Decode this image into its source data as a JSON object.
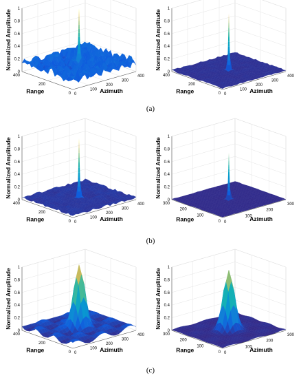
{
  "figure": {
    "captions": [
      "(a)",
      "(b)",
      "(c)"
    ]
  },
  "chart_data": [
    {
      "id": "a-left",
      "type": "surface",
      "zlabel": "Normalized Amplitude",
      "range_label": "Range",
      "azimuth_label": "Azimuth",
      "zticks": [
        "0",
        "0.2",
        "0.4",
        "0.6",
        "0.8",
        "1"
      ],
      "range_ticks": [
        "400",
        "200",
        "0"
      ],
      "azimuth_ticks": [
        "0",
        "100",
        "200",
        "300",
        "400"
      ],
      "zlim": [
        0,
        1
      ],
      "range_lim": [
        0,
        400
      ],
      "azimuth_lim": [
        0,
        400
      ],
      "peak": 1.0,
      "peak_width": "narrow",
      "noise_floor": 0.22,
      "colormap": "parula"
    },
    {
      "id": "a-right",
      "type": "surface",
      "zlabel": "Normalized Amplitude",
      "range_label": "Range",
      "azimuth_label": "Azimuth",
      "zticks": [
        "0",
        "0.2",
        "0.4",
        "0.6",
        "0.8",
        "1"
      ],
      "range_ticks": [
        "400",
        "200",
        "0"
      ],
      "azimuth_ticks": [
        "0",
        "100",
        "200",
        "300",
        "400"
      ],
      "zlim": [
        0,
        1
      ],
      "range_lim": [
        0,
        400
      ],
      "azimuth_lim": [
        0,
        400
      ],
      "peak": 0.92,
      "peak_width": "narrow",
      "noise_floor": 0.03,
      "colormap": "parula"
    },
    {
      "id": "b-left",
      "type": "surface",
      "zlabel": "Normalized Amplitude",
      "range_label": "Range",
      "azimuth_label": "Azimuth",
      "zticks": [
        "0",
        "0.2",
        "0.4",
        "0.6",
        "0.8",
        "1"
      ],
      "range_ticks": [
        "400",
        "200",
        "0"
      ],
      "azimuth_ticks": [
        "0",
        "100",
        "200",
        "300",
        "400"
      ],
      "zlim": [
        0,
        1
      ],
      "range_lim": [
        0,
        400
      ],
      "azimuth_lim": [
        0,
        400
      ],
      "peak": 0.97,
      "peak_width": "narrow",
      "noise_floor": 0.05,
      "colormap": "parula"
    },
    {
      "id": "b-right",
      "type": "surface",
      "zlabel": "Normalized Amplitude",
      "range_label": "Range",
      "azimuth_label": "Azimuth",
      "zticks": [
        "0",
        "0.2",
        "0.4",
        "0.6",
        "0.8",
        "1"
      ],
      "range_ticks": [
        "300",
        "200",
        "100",
        "0"
      ],
      "azimuth_ticks": [
        "0",
        "100",
        "200",
        "300"
      ],
      "zlim": [
        0,
        1
      ],
      "range_lim": [
        0,
        300
      ],
      "azimuth_lim": [
        0,
        300
      ],
      "peak": 0.74,
      "peak_width": "narrow",
      "noise_floor": 0.01,
      "colormap": "parula"
    },
    {
      "id": "c-left",
      "type": "surface",
      "zlabel": "Normalized Amplitude",
      "range_label": "Range",
      "azimuth_label": "Azimuth",
      "zticks": [
        "0",
        "0.2",
        "0.4",
        "0.6",
        "0.8",
        "1"
      ],
      "range_ticks": [
        "400",
        "200",
        "0"
      ],
      "azimuth_ticks": [
        "0",
        "100",
        "200",
        "300",
        "400"
      ],
      "zlim": [
        0,
        1
      ],
      "range_lim": [
        0,
        400
      ],
      "azimuth_lim": [
        0,
        400
      ],
      "peak": 1.0,
      "peak_width": "wide",
      "noise_floor": 0.12,
      "colormap": "parula"
    },
    {
      "id": "c-right",
      "type": "surface",
      "zlabel": "Normalized Amplitude",
      "range_label": "Range",
      "azimuth_label": "Azimuth",
      "zticks": [
        "0",
        "0.2",
        "0.4",
        "0.6",
        "0.8",
        "1"
      ],
      "range_ticks": [
        "300",
        "200",
        "100",
        "0"
      ],
      "azimuth_ticks": [
        "0",
        "100",
        "200",
        "300"
      ],
      "zlim": [
        0,
        1
      ],
      "range_lim": [
        0,
        300
      ],
      "azimuth_lim": [
        0,
        300
      ],
      "peak": 0.95,
      "peak_width": "wide",
      "noise_floor": 0.02,
      "colormap": "parula"
    }
  ]
}
